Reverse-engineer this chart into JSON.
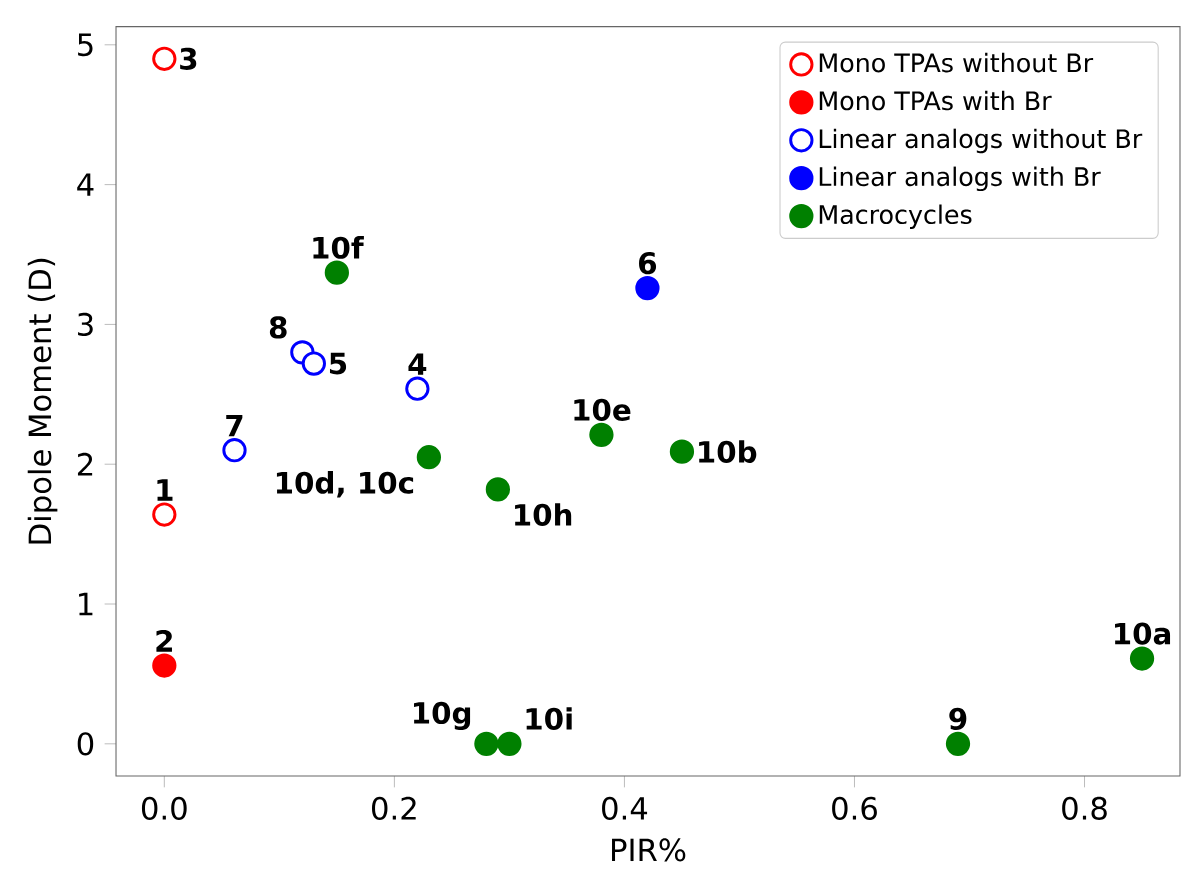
{
  "chart_data": {
    "type": "scatter",
    "xlabel": "PIR%",
    "ylabel": "Dipole Moment (D)",
    "xlim": [
      -0.042,
      0.883
    ],
    "ylim": [
      -0.23,
      5.13
    ],
    "xticks": [
      {
        "value": 0,
        "label": "0.0"
      },
      {
        "value": 0.2,
        "label": "0.2"
      },
      {
        "value": 0.4,
        "label": "0.4"
      },
      {
        "value": 0.6,
        "label": "0.6"
      },
      {
        "value": 0.8,
        "label": "0.8"
      }
    ],
    "yticks": [
      0,
      1,
      2,
      3,
      4,
      5
    ],
    "legend": "top right",
    "grid": false,
    "series": [
      {
        "name": "Mono TPAs without Br",
        "color": "#ff0000",
        "marker": "open circle",
        "x": [
          0.0,
          0.0
        ],
        "values": [
          4.9,
          1.64
        ]
      },
      {
        "name": "Mono TPAs with Br",
        "color": "#ff0000",
        "marker": "circle",
        "x": [
          0.0
        ],
        "values": [
          0.56
        ]
      },
      {
        "name": "Linear analogs without Br",
        "color": "#0000ff",
        "marker": "open circle",
        "x": [
          0.12,
          0.13,
          0.061,
          0.22
        ],
        "values": [
          2.8,
          2.72,
          2.1,
          2.54
        ]
      },
      {
        "name": "Linear analogs with Br",
        "color": "#0000ff",
        "marker": "circle",
        "x": [
          0.42
        ],
        "values": [
          3.26
        ]
      },
      {
        "name": "Macrocycles",
        "color": "#008000",
        "marker": "circle",
        "x": [
          0.15,
          0.23,
          0.29,
          0.38,
          0.45,
          0.28,
          0.3,
          0.69,
          0.85
        ],
        "values": [
          3.37,
          2.05,
          1.82,
          2.21,
          2.09,
          0.0,
          0.0,
          0.0,
          0.61
        ]
      }
    ],
    "annotations": [
      {
        "text": "3",
        "x": 0.0,
        "y": 4.9
      },
      {
        "text": "1",
        "x": 0.0,
        "y": 1.64
      },
      {
        "text": "2",
        "x": 0.0,
        "y": 0.56
      },
      {
        "text": "8",
        "x": 0.12,
        "y": 2.8
      },
      {
        "text": "5",
        "x": 0.13,
        "y": 2.72
      },
      {
        "text": "7",
        "x": 0.061,
        "y": 2.1
      },
      {
        "text": "4",
        "x": 0.22,
        "y": 2.54
      },
      {
        "text": "6",
        "x": 0.42,
        "y": 3.26
      },
      {
        "text": "10f",
        "x": 0.15,
        "y": 3.37
      },
      {
        "text": "10d, 10c",
        "x": 0.23,
        "y": 2.05
      },
      {
        "text": "10h",
        "x": 0.29,
        "y": 1.82
      },
      {
        "text": "10e",
        "x": 0.38,
        "y": 2.21
      },
      {
        "text": "10b",
        "x": 0.45,
        "y": 2.09
      },
      {
        "text": "10g",
        "x": 0.28,
        "y": 0.0
      },
      {
        "text": "10i",
        "x": 0.3,
        "y": 0.0
      },
      {
        "text": "9",
        "x": 0.69,
        "y": 0.0
      },
      {
        "text": "10a",
        "x": 0.85,
        "y": 0.61
      }
    ]
  }
}
